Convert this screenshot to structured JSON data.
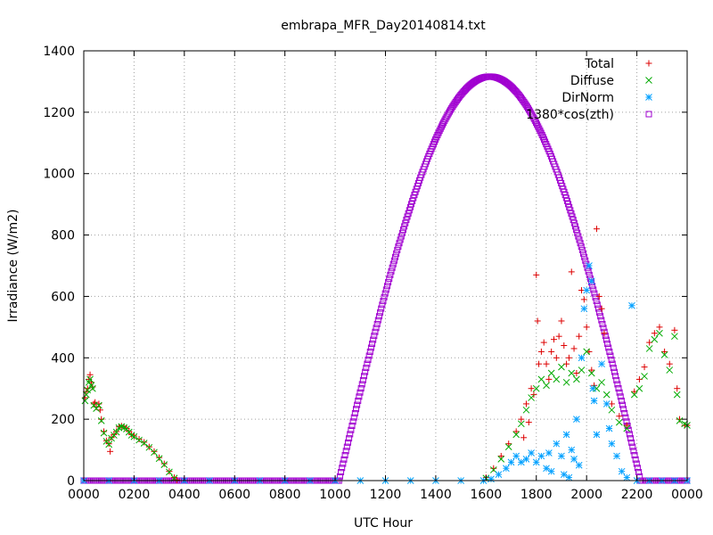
{
  "chart_data": {
    "type": "scatter",
    "title": "embrapa_MFR_Day20140814.txt",
    "xlabel": "UTC Hour",
    "ylabel": "Irradiance (W/m2)",
    "xlim": [
      0,
      24
    ],
    "ylim": [
      0,
      1400
    ],
    "x_ticks": [
      {
        "value": 0,
        "label": "0000"
      },
      {
        "value": 2,
        "label": "0200"
      },
      {
        "value": 4,
        "label": "0400"
      },
      {
        "value": 6,
        "label": "0600"
      },
      {
        "value": 8,
        "label": "0800"
      },
      {
        "value": 10,
        "label": "1000"
      },
      {
        "value": 12,
        "label": "1200"
      },
      {
        "value": 14,
        "label": "1400"
      },
      {
        "value": 16,
        "label": "1600"
      },
      {
        "value": 18,
        "label": "1800"
      },
      {
        "value": 20,
        "label": "2000"
      },
      {
        "value": 22,
        "label": "2200"
      },
      {
        "value": 24,
        "label": "0000"
      }
    ],
    "y_ticks": [
      {
        "value": 0,
        "label": "0"
      },
      {
        "value": 200,
        "label": "200"
      },
      {
        "value": 400,
        "label": "400"
      },
      {
        "value": 600,
        "label": "600"
      },
      {
        "value": 800,
        "label": "800"
      },
      {
        "value": 1000,
        "label": "1000"
      },
      {
        "value": 1200,
        "label": "1200"
      },
      {
        "value": 1400,
        "label": "1400"
      }
    ],
    "grid": true,
    "legend_position": "top-right",
    "series": [
      {
        "name": "Total",
        "marker": "plus",
        "color": "#dd0000",
        "points": [
          [
            0.05,
            270
          ],
          [
            0.1,
            290
          ],
          [
            0.15,
            300
          ],
          [
            0.2,
            330
          ],
          [
            0.25,
            345
          ],
          [
            0.3,
            320
          ],
          [
            0.35,
            305
          ],
          [
            0.4,
            250
          ],
          [
            0.45,
            255
          ],
          [
            0.5,
            240
          ],
          [
            0.6,
            250
          ],
          [
            0.65,
            230
          ],
          [
            0.7,
            200
          ],
          [
            0.8,
            160
          ],
          [
            0.9,
            130
          ],
          [
            1.0,
            120
          ],
          [
            1.05,
            95
          ],
          [
            1.1,
            140
          ],
          [
            1.2,
            150
          ],
          [
            1.3,
            160
          ],
          [
            1.4,
            175
          ],
          [
            1.5,
            178
          ],
          [
            1.6,
            175
          ],
          [
            1.7,
            170
          ],
          [
            1.8,
            160
          ],
          [
            1.9,
            150
          ],
          [
            2.0,
            145
          ],
          [
            2.2,
            135
          ],
          [
            2.4,
            125
          ],
          [
            2.6,
            110
          ],
          [
            2.8,
            95
          ],
          [
            3.0,
            75
          ],
          [
            3.2,
            55
          ],
          [
            3.4,
            30
          ],
          [
            3.6,
            10
          ],
          [
            3.7,
            2
          ],
          [
            16.0,
            10
          ],
          [
            16.3,
            40
          ],
          [
            16.6,
            80
          ],
          [
            16.9,
            120
          ],
          [
            17.2,
            160
          ],
          [
            17.4,
            200
          ],
          [
            17.5,
            140
          ],
          [
            17.6,
            250
          ],
          [
            17.7,
            190
          ],
          [
            17.8,
            300
          ],
          [
            17.9,
            280
          ],
          [
            18.0,
            670
          ],
          [
            18.05,
            520
          ],
          [
            18.1,
            380
          ],
          [
            18.2,
            420
          ],
          [
            18.3,
            450
          ],
          [
            18.4,
            380
          ],
          [
            18.5,
            330
          ],
          [
            18.6,
            420
          ],
          [
            18.7,
            460
          ],
          [
            18.8,
            400
          ],
          [
            18.9,
            470
          ],
          [
            19.0,
            520
          ],
          [
            19.1,
            440
          ],
          [
            19.2,
            380
          ],
          [
            19.3,
            400
          ],
          [
            19.4,
            680
          ],
          [
            19.5,
            430
          ],
          [
            19.6,
            350
          ],
          [
            19.7,
            470
          ],
          [
            19.8,
            620
          ],
          [
            19.9,
            590
          ],
          [
            20.0,
            500
          ],
          [
            20.1,
            420
          ],
          [
            20.2,
            360
          ],
          [
            20.3,
            310
          ],
          [
            20.4,
            820
          ],
          [
            20.5,
            600
          ],
          [
            20.6,
            560
          ],
          [
            20.7,
            480
          ],
          [
            21.0,
            250
          ],
          [
            21.3,
            210
          ],
          [
            21.6,
            180
          ],
          [
            21.9,
            290
          ],
          [
            22.1,
            330
          ],
          [
            22.3,
            370
          ],
          [
            22.5,
            450
          ],
          [
            22.7,
            480
          ],
          [
            22.9,
            500
          ],
          [
            23.1,
            420
          ],
          [
            23.3,
            380
          ],
          [
            23.5,
            490
          ],
          [
            23.6,
            300
          ],
          [
            23.7,
            200
          ],
          [
            23.9,
            180
          ],
          [
            24.0,
            180
          ]
        ]
      },
      {
        "name": "Diffuse",
        "marker": "cross",
        "color": "#00aa00",
        "points": [
          [
            0.05,
            260
          ],
          [
            0.1,
            280
          ],
          [
            0.15,
            295
          ],
          [
            0.2,
            320
          ],
          [
            0.25,
            330
          ],
          [
            0.3,
            310
          ],
          [
            0.35,
            300
          ],
          [
            0.4,
            245
          ],
          [
            0.5,
            235
          ],
          [
            0.6,
            245
          ],
          [
            0.7,
            195
          ],
          [
            0.8,
            155
          ],
          [
            0.9,
            128
          ],
          [
            1.0,
            118
          ],
          [
            1.1,
            138
          ],
          [
            1.2,
            148
          ],
          [
            1.3,
            158
          ],
          [
            1.4,
            172
          ],
          [
            1.5,
            176
          ],
          [
            1.6,
            173
          ],
          [
            1.7,
            168
          ],
          [
            1.8,
            158
          ],
          [
            1.9,
            148
          ],
          [
            2.0,
            143
          ],
          [
            2.2,
            132
          ],
          [
            2.4,
            122
          ],
          [
            2.6,
            108
          ],
          [
            2.8,
            92
          ],
          [
            3.0,
            72
          ],
          [
            3.2,
            52
          ],
          [
            3.4,
            28
          ],
          [
            3.6,
            8
          ],
          [
            16.0,
            8
          ],
          [
            16.3,
            35
          ],
          [
            16.6,
            70
          ],
          [
            16.9,
            110
          ],
          [
            17.2,
            150
          ],
          [
            17.4,
            185
          ],
          [
            17.6,
            230
          ],
          [
            17.8,
            270
          ],
          [
            18.0,
            300
          ],
          [
            18.2,
            330
          ],
          [
            18.4,
            310
          ],
          [
            18.6,
            350
          ],
          [
            18.8,
            330
          ],
          [
            19.0,
            370
          ],
          [
            19.2,
            320
          ],
          [
            19.4,
            350
          ],
          [
            19.6,
            330
          ],
          [
            19.8,
            360
          ],
          [
            20.0,
            420
          ],
          [
            20.2,
            350
          ],
          [
            20.4,
            300
          ],
          [
            20.6,
            320
          ],
          [
            20.8,
            280
          ],
          [
            21.0,
            230
          ],
          [
            21.3,
            190
          ],
          [
            21.6,
            170
          ],
          [
            21.9,
            280
          ],
          [
            22.1,
            300
          ],
          [
            22.3,
            340
          ],
          [
            22.5,
            430
          ],
          [
            22.7,
            460
          ],
          [
            22.9,
            480
          ],
          [
            23.1,
            410
          ],
          [
            23.3,
            360
          ],
          [
            23.5,
            470
          ],
          [
            23.6,
            280
          ],
          [
            23.7,
            195
          ],
          [
            23.9,
            185
          ],
          [
            24.0,
            180
          ]
        ]
      },
      {
        "name": "DirNorm",
        "marker": "star",
        "color": "#00a0ff",
        "points": [
          [
            0.0,
            0
          ],
          [
            1.0,
            0
          ],
          [
            2.0,
            0
          ],
          [
            3.0,
            0
          ],
          [
            4.0,
            0
          ],
          [
            5.0,
            0
          ],
          [
            6.0,
            0
          ],
          [
            7.0,
            0
          ],
          [
            8.0,
            0
          ],
          [
            9.0,
            0
          ],
          [
            10.0,
            0
          ],
          [
            11.0,
            0
          ],
          [
            12.0,
            0
          ],
          [
            13.0,
            0
          ],
          [
            14.0,
            0
          ],
          [
            15.0,
            0
          ],
          [
            15.9,
            0
          ],
          [
            16.2,
            5
          ],
          [
            16.5,
            20
          ],
          [
            16.8,
            40
          ],
          [
            17.0,
            60
          ],
          [
            17.2,
            80
          ],
          [
            17.4,
            60
          ],
          [
            17.6,
            70
          ],
          [
            17.8,
            90
          ],
          [
            18.0,
            60
          ],
          [
            18.2,
            80
          ],
          [
            18.4,
            40
          ],
          [
            18.5,
            90
          ],
          [
            18.6,
            30
          ],
          [
            18.8,
            120
          ],
          [
            19.0,
            80
          ],
          [
            19.1,
            20
          ],
          [
            19.2,
            150
          ],
          [
            19.3,
            10
          ],
          [
            19.4,
            100
          ],
          [
            19.5,
            70
          ],
          [
            19.6,
            200
          ],
          [
            19.7,
            50
          ],
          [
            19.8,
            400
          ],
          [
            19.9,
            560
          ],
          [
            20.0,
            620
          ],
          [
            20.1,
            700
          ],
          [
            20.2,
            650
          ],
          [
            20.25,
            300
          ],
          [
            20.3,
            260
          ],
          [
            20.4,
            150
          ],
          [
            20.6,
            380
          ],
          [
            20.8,
            250
          ],
          [
            20.9,
            170
          ],
          [
            21.0,
            120
          ],
          [
            21.2,
            80
          ],
          [
            21.4,
            30
          ],
          [
            21.6,
            10
          ],
          [
            21.8,
            570
          ],
          [
            22.0,
            0
          ],
          [
            22.5,
            0
          ],
          [
            23.0,
            0
          ],
          [
            23.5,
            0
          ],
          [
            24.0,
            0
          ]
        ]
      },
      {
        "name": "1380*cos(zth)",
        "marker": "square",
        "color": "#a000d0",
        "curve": {
          "start": 10.15,
          "peak_x": 16.15,
          "peak": 1316,
          "end": 22.15,
          "step": 0.04
        }
      }
    ]
  }
}
